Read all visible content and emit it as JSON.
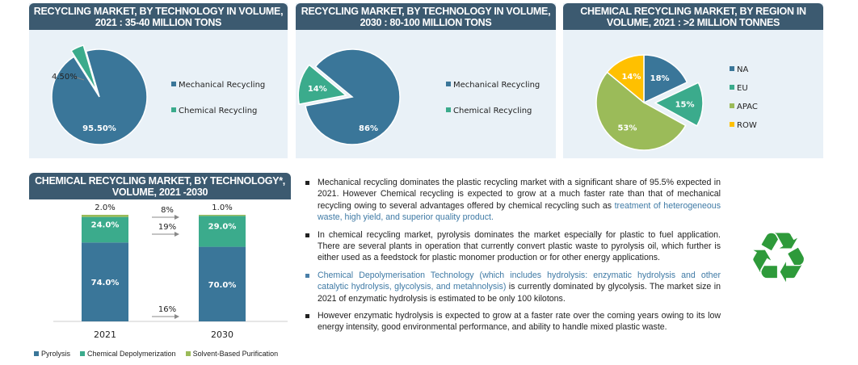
{
  "chart_data": [
    {
      "type": "pie",
      "title": "RECYCLING MARKET, BY TECHNOLOGY IN VOLUME, 2021 : 35-40 MILLION TONS",
      "slices": [
        {
          "label": "Mechanical Recycling",
          "value": 95.5,
          "text": "95.50%",
          "color": "#3a7699"
        },
        {
          "label": "Chemical Recycling",
          "value": 4.5,
          "text": "4.50%",
          "color": "#3bab8c",
          "exploded": true
        }
      ]
    },
    {
      "type": "pie",
      "title": "RECYCLING MARKET, BY TECHNOLOGY IN VOLUME, 2030 : 80-100 MILLION TONS",
      "slices": [
        {
          "label": "Mechanical Recycling",
          "value": 86,
          "text": "86%",
          "color": "#3a7699"
        },
        {
          "label": "Chemical Recycling",
          "value": 14,
          "text": "14%",
          "color": "#3bab8c",
          "exploded": true
        }
      ]
    },
    {
      "type": "pie",
      "title": "CHEMICAL RECYCLING MARKET, BY REGION IN VOLUME, 2021 : >2 MILLION TONNES",
      "slices": [
        {
          "label": "NA",
          "value": 18,
          "text": "18%",
          "color": "#3a7699"
        },
        {
          "label": "EU",
          "value": 15,
          "text": "15%",
          "color": "#3bab8c",
          "exploded": true
        },
        {
          "label": "APAC",
          "value": 53,
          "text": "53%",
          "color": "#9bbb59"
        },
        {
          "label": "ROW",
          "value": 14,
          "text": "14%",
          "color": "#ffc000"
        }
      ]
    },
    {
      "type": "bar",
      "stacked": true,
      "title": "CHEMICAL RECYCLING MARKET, BY TECHNOLOGY*, VOLUME, 2021 -2030",
      "categories": [
        "2021",
        "2030"
      ],
      "series": [
        {
          "name": "Pyrolysis",
          "values": [
            74,
            70
          ],
          "labels": [
            "74.0%",
            "70.0%"
          ],
          "color": "#3a7699",
          "growth": "16%"
        },
        {
          "name": "Chemical Depolymerization",
          "values": [
            24,
            29
          ],
          "labels": [
            "24.0%",
            "29.0%"
          ],
          "color": "#3bab8c",
          "growth": "19%"
        },
        {
          "name": "Solvent-Based Purification",
          "values": [
            2,
            1
          ],
          "labels": [
            "2.0%",
            "1.0%"
          ],
          "color": "#9bbb59",
          "growth": "8%"
        }
      ]
    }
  ],
  "bullets": [
    [
      {
        "t": "Mechanical recycling dominates the plastic recycling market with a significant share of 95.5% expected in 2021. However Chemical recycling is expected to grow at a much faster rate than that of mechanical recycling owing to several advantages offered by chemical recycling such as "
      },
      {
        "t": "treatment of heterogeneous waste, high yield, and superior quality product.",
        "hl": true
      }
    ],
    [
      {
        "t": "In chemical recycling market, pyrolysis dominates the market especially for plastic to fuel application. There are several plants in operation that currently convert plastic waste to pyrolysis oil, which further is either used as a feedstock for plastic monomer production or for other energy applications."
      }
    ],
    [
      {
        "t": "Chemical Depolymerisation Technology (which includes hydrolysis: enzymatic hydrolysis and other catalytic hydrolysis, glycolysis, and metahnolysis)",
        "hl": true
      },
      {
        "t": " is currently dominated by glycolysis. The market size in 2021 of enzymatic hydrolysis is estimated to be only 100 kilotons."
      }
    ],
    [
      {
        "t": "However enzymatic hydrolysis is expected to grow at a faster rate over the coming years owing to its low energy intensity, good environmental performance, and ability to handle mixed plastic waste."
      }
    ]
  ],
  "icon": "recycle-icon"
}
